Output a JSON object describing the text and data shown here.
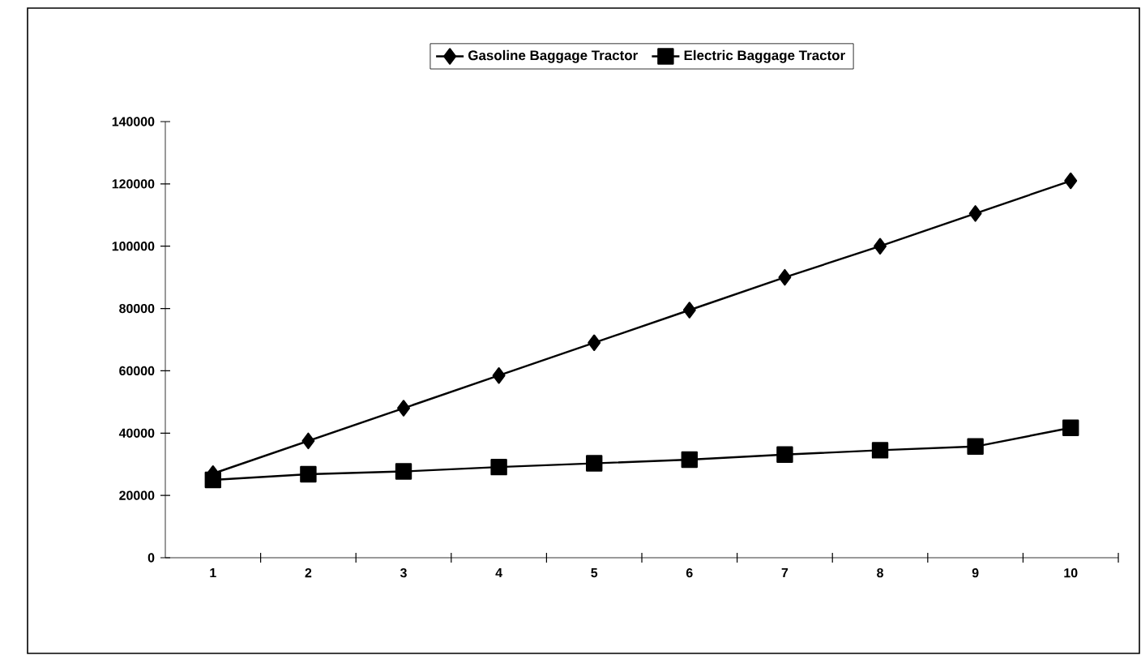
{
  "chart_data": {
    "type": "line",
    "categories": [
      "1",
      "2",
      "3",
      "4",
      "5",
      "6",
      "7",
      "8",
      "9",
      "10"
    ],
    "series": [
      {
        "name": "Gasoline Baggage Tractor",
        "color": "#000000",
        "marker": "diamond",
        "values": [
          27000,
          37500,
          48000,
          58500,
          69000,
          79500,
          90000,
          100000,
          110500,
          121000
        ]
      },
      {
        "name": "Electric Baggage Tractor",
        "color": "#000000",
        "marker": "square",
        "values": [
          25000,
          26800,
          27700,
          29100,
          30300,
          31500,
          33100,
          34500,
          35700,
          41700
        ]
      }
    ],
    "ylim": [
      0,
      140000
    ],
    "yticks": [
      0,
      20000,
      40000,
      60000,
      80000,
      100000,
      120000,
      140000
    ],
    "grid": false,
    "legend": "top",
    "line_style": "solid"
  }
}
